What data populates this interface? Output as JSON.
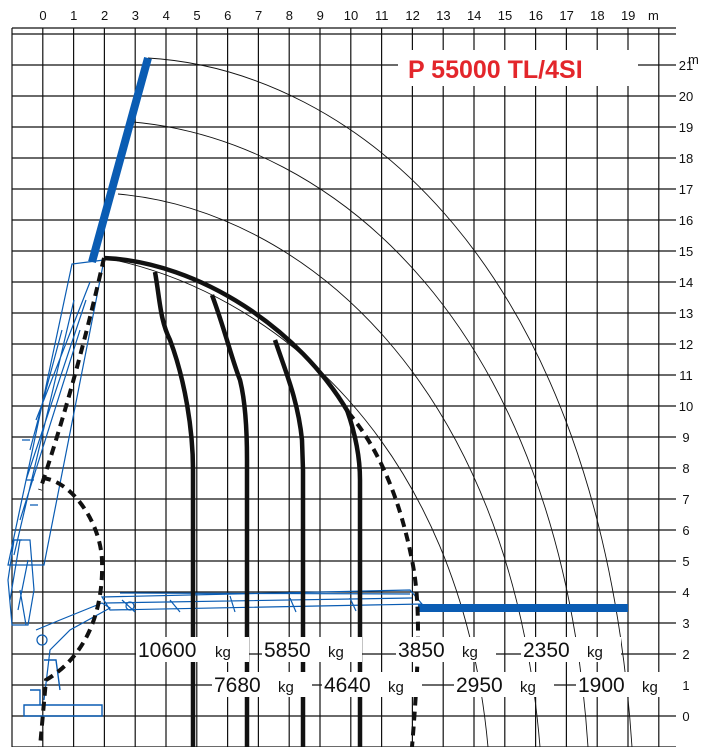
{
  "chart": {
    "model": "P 55000 TL/4SI",
    "x_unit": "m",
    "y_unit": "m",
    "x_ticks": [
      "0",
      "1",
      "2",
      "3",
      "4",
      "5",
      "6",
      "7",
      "8",
      "9",
      "10",
      "11",
      "12",
      "13",
      "14",
      "15",
      "16",
      "17",
      "18",
      "19"
    ],
    "y_ticks": [
      "0",
      "1",
      "2",
      "3",
      "4",
      "5",
      "6",
      "7",
      "8",
      "9",
      "10",
      "11",
      "12",
      "13",
      "14",
      "15",
      "16",
      "17",
      "18",
      "19",
      "20",
      "21"
    ],
    "capacities_upper": [
      {
        "value": "10600",
        "unit": "kg"
      },
      {
        "value": "5850",
        "unit": "kg"
      },
      {
        "value": "3850",
        "unit": "kg"
      },
      {
        "value": "2350",
        "unit": "kg"
      }
    ],
    "capacities_lower": [
      {
        "value": "7680",
        "unit": "kg"
      },
      {
        "value": "4640",
        "unit": "kg"
      },
      {
        "value": "2950",
        "unit": "kg"
      },
      {
        "value": "1900",
        "unit": "kg"
      }
    ],
    "colors": {
      "title": "#e3262b",
      "crane": "#0a5cb3",
      "grid": "#111111",
      "curves": "#111111"
    }
  }
}
